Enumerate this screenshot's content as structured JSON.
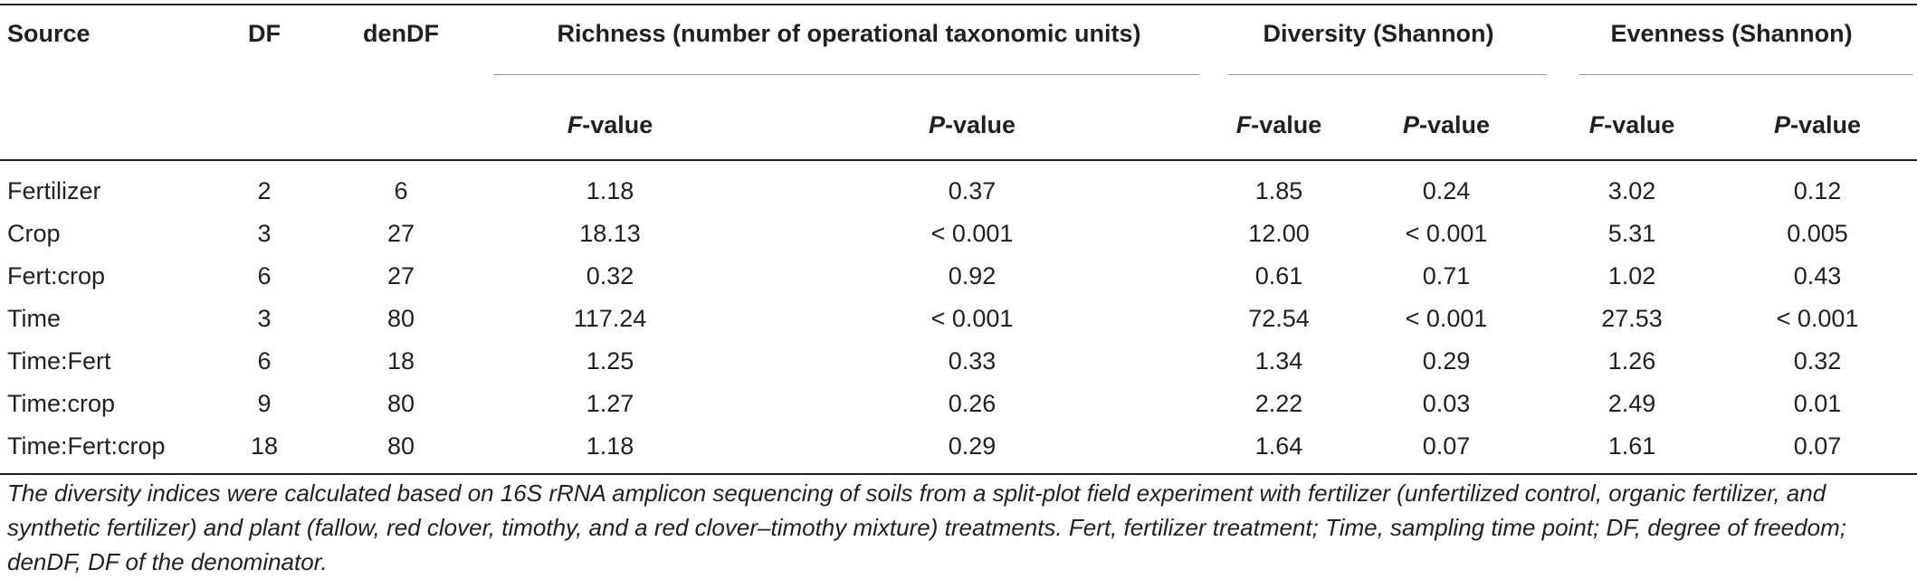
{
  "table": {
    "headers": {
      "source": "Source",
      "df": "DF",
      "dendf": "denDF",
      "richness": "Richness (number of operational taxonomic units)",
      "diversity": "Diversity (Shannon)",
      "evenness": "Evenness (Shannon)",
      "f_letter": "F",
      "p_letter": "P",
      "value_suffix": "-value"
    },
    "rows": [
      {
        "source": "Fertilizer",
        "df": "2",
        "dendf": "6",
        "rich_f": "1.18",
        "rich_p": "0.37",
        "div_f": "1.85",
        "div_p": "0.24",
        "even_f": "3.02",
        "even_p": "0.12"
      },
      {
        "source": "Crop",
        "df": "3",
        "dendf": "27",
        "rich_f": "18.13",
        "rich_p": "< 0.001",
        "div_f": "12.00",
        "div_p": "< 0.001",
        "even_f": "5.31",
        "even_p": "0.005"
      },
      {
        "source": "Fert:crop",
        "df": "6",
        "dendf": "27",
        "rich_f": "0.32",
        "rich_p": "0.92",
        "div_f": "0.61",
        "div_p": "0.71",
        "even_f": "1.02",
        "even_p": "0.43"
      },
      {
        "source": "Time",
        "df": "3",
        "dendf": "80",
        "rich_f": "117.24",
        "rich_p": "< 0.001",
        "div_f": "72.54",
        "div_p": "< 0.001",
        "even_f": "27.53",
        "even_p": "< 0.001"
      },
      {
        "source": "Time:Fert",
        "df": "6",
        "dendf": "18",
        "rich_f": "1.25",
        "rich_p": "0.33",
        "div_f": "1.34",
        "div_p": "0.29",
        "even_f": "1.26",
        "even_p": "0.32"
      },
      {
        "source": "Time:crop",
        "df": "9",
        "dendf": "80",
        "rich_f": "1.27",
        "rich_p": "0.26",
        "div_f": "2.22",
        "div_p": "0.03",
        "even_f": "2.49",
        "even_p": "0.01"
      },
      {
        "source": "Time:Fert:crop",
        "df": "18",
        "dendf": "80",
        "rich_f": "1.18",
        "rich_p": "0.29",
        "div_f": "1.64",
        "div_p": "0.07",
        "even_f": "1.61",
        "even_p": "0.07"
      }
    ]
  },
  "caption": "The diversity indices were calculated based on 16S rRNA amplicon sequencing of soils from a split-plot field experiment with fertilizer (unfertilized control, organic fertilizer, and synthetic fertilizer) and plant (fallow, red clover, timothy, and a red clover–timothy mixture) treatments. Fert, fertilizer treatment; Time, sampling time point; DF, degree of freedom; denDF, DF of the denominator."
}
